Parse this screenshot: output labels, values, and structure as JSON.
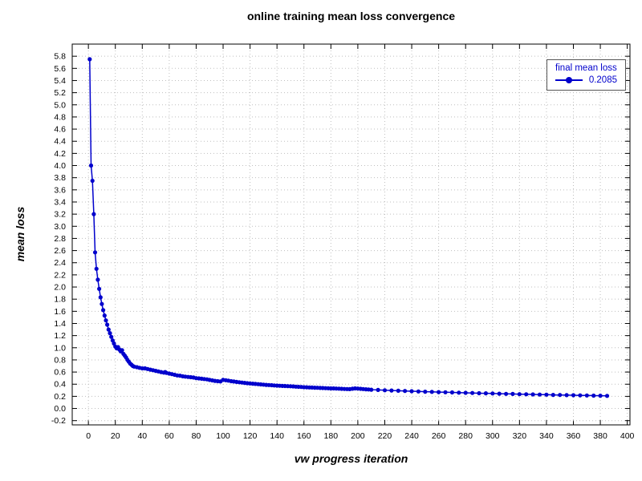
{
  "title": "online training mean loss convergence",
  "legend": {
    "title": "final mean loss",
    "value": "0.2085"
  },
  "colors": {
    "accent": "#0000cc",
    "grid": "#bfbfbf",
    "border": "#000000"
  },
  "chart_data": {
    "type": "line",
    "title": "online training mean loss convergence",
    "xlabel": "vw progress iteration",
    "ylabel": "mean loss",
    "xlim": [
      -12,
      402
    ],
    "ylim": [
      -0.27,
      6.0
    ],
    "xticks": {
      "start": 0,
      "end": 400,
      "step": 20
    },
    "yticks": {
      "start": -0.2,
      "end": 5.8,
      "step": 0.2
    },
    "grid": true,
    "legend_position": "top-right",
    "series": [
      {
        "name": "final mean loss",
        "final_value": 0.2085,
        "color": "#0000cc",
        "marker": "circle",
        "points": [
          [
            1,
            5.75
          ],
          [
            2,
            4.0
          ],
          [
            3,
            3.75
          ],
          [
            4,
            3.2
          ],
          [
            5,
            2.57
          ],
          [
            6,
            2.3
          ],
          [
            7,
            2.12
          ],
          [
            8,
            1.97
          ],
          [
            9,
            1.83
          ],
          [
            10,
            1.72
          ],
          [
            11,
            1.62
          ],
          [
            12,
            1.53
          ],
          [
            13,
            1.45
          ],
          [
            14,
            1.38
          ],
          [
            15,
            1.3
          ],
          [
            16,
            1.24
          ],
          [
            17,
            1.18
          ],
          [
            18,
            1.12
          ],
          [
            19,
            1.07
          ],
          [
            20,
            1.02
          ],
          [
            21,
            0.99
          ],
          [
            22,
            1.01
          ],
          [
            23,
            0.97
          ],
          [
            24,
            0.94
          ],
          [
            25,
            0.96
          ],
          [
            26,
            0.9
          ],
          [
            27,
            0.87
          ],
          [
            28,
            0.84
          ],
          [
            29,
            0.8
          ],
          [
            30,
            0.77
          ],
          [
            31,
            0.74
          ],
          [
            32,
            0.72
          ],
          [
            33,
            0.7
          ],
          [
            34,
            0.69
          ],
          [
            36,
            0.68
          ],
          [
            38,
            0.67
          ],
          [
            40,
            0.66
          ],
          [
            42,
            0.66
          ],
          [
            44,
            0.65
          ],
          [
            46,
            0.64
          ],
          [
            48,
            0.63
          ],
          [
            50,
            0.62
          ],
          [
            52,
            0.61
          ],
          [
            54,
            0.6
          ],
          [
            56,
            0.59
          ],
          [
            57,
            0.6
          ],
          [
            58,
            0.585
          ],
          [
            60,
            0.575
          ],
          [
            62,
            0.565
          ],
          [
            64,
            0.555
          ],
          [
            66,
            0.545
          ],
          [
            68,
            0.54
          ],
          [
            70,
            0.53
          ],
          [
            72,
            0.525
          ],
          [
            74,
            0.52
          ],
          [
            76,
            0.515
          ],
          [
            78,
            0.51
          ],
          [
            80,
            0.5
          ],
          [
            82,
            0.495
          ],
          [
            84,
            0.49
          ],
          [
            86,
            0.485
          ],
          [
            88,
            0.48
          ],
          [
            90,
            0.47
          ],
          [
            92,
            0.462
          ],
          [
            94,
            0.455
          ],
          [
            96,
            0.45
          ],
          [
            98,
            0.445
          ],
          [
            100,
            0.47
          ],
          [
            102,
            0.465
          ],
          [
            104,
            0.458
          ],
          [
            106,
            0.45
          ],
          [
            108,
            0.444
          ],
          [
            110,
            0.438
          ],
          [
            112,
            0.432
          ],
          [
            114,
            0.427
          ],
          [
            116,
            0.422
          ],
          [
            118,
            0.417
          ],
          [
            120,
            0.412
          ],
          [
            122,
            0.408
          ],
          [
            124,
            0.404
          ],
          [
            126,
            0.4
          ],
          [
            128,
            0.396
          ],
          [
            130,
            0.392
          ],
          [
            132,
            0.389
          ],
          [
            134,
            0.386
          ],
          [
            136,
            0.383
          ],
          [
            138,
            0.38
          ],
          [
            140,
            0.377
          ],
          [
            142,
            0.374
          ],
          [
            144,
            0.372
          ],
          [
            146,
            0.37
          ],
          [
            148,
            0.368
          ],
          [
            150,
            0.366
          ],
          [
            152,
            0.363
          ],
          [
            154,
            0.36
          ],
          [
            156,
            0.357
          ],
          [
            158,
            0.354
          ],
          [
            160,
            0.351
          ],
          [
            162,
            0.349
          ],
          [
            164,
            0.347
          ],
          [
            166,
            0.345
          ],
          [
            168,
            0.343
          ],
          [
            170,
            0.341
          ],
          [
            172,
            0.339
          ],
          [
            174,
            0.337
          ],
          [
            176,
            0.335
          ],
          [
            178,
            0.333
          ],
          [
            180,
            0.331
          ],
          [
            182,
            0.33
          ],
          [
            184,
            0.328
          ],
          [
            186,
            0.326
          ],
          [
            188,
            0.324
          ],
          [
            190,
            0.322
          ],
          [
            192,
            0.32
          ],
          [
            194,
            0.319
          ],
          [
            196,
            0.325
          ],
          [
            198,
            0.33
          ],
          [
            200,
            0.328
          ],
          [
            202,
            0.324
          ],
          [
            204,
            0.32
          ],
          [
            206,
            0.316
          ],
          [
            208,
            0.313
          ],
          [
            210,
            0.31
          ],
          [
            215,
            0.305
          ],
          [
            220,
            0.3
          ],
          [
            225,
            0.296
          ],
          [
            230,
            0.292
          ],
          [
            235,
            0.288
          ],
          [
            240,
            0.284
          ],
          [
            245,
            0.28
          ],
          [
            250,
            0.277
          ],
          [
            255,
            0.274
          ],
          [
            260,
            0.27
          ],
          [
            265,
            0.267
          ],
          [
            270,
            0.264
          ],
          [
            275,
            0.261
          ],
          [
            280,
            0.258
          ],
          [
            285,
            0.255
          ],
          [
            290,
            0.252
          ],
          [
            295,
            0.25
          ],
          [
            300,
            0.247
          ],
          [
            305,
            0.244
          ],
          [
            310,
            0.241
          ],
          [
            315,
            0.239
          ],
          [
            320,
            0.236
          ],
          [
            325,
            0.234
          ],
          [
            330,
            0.231
          ],
          [
            335,
            0.229
          ],
          [
            340,
            0.227
          ],
          [
            345,
            0.224
          ],
          [
            350,
            0.222
          ],
          [
            355,
            0.22
          ],
          [
            360,
            0.218
          ],
          [
            365,
            0.216
          ],
          [
            370,
            0.214
          ],
          [
            375,
            0.212
          ],
          [
            380,
            0.21
          ],
          [
            385,
            0.2085
          ]
        ]
      }
    ]
  }
}
